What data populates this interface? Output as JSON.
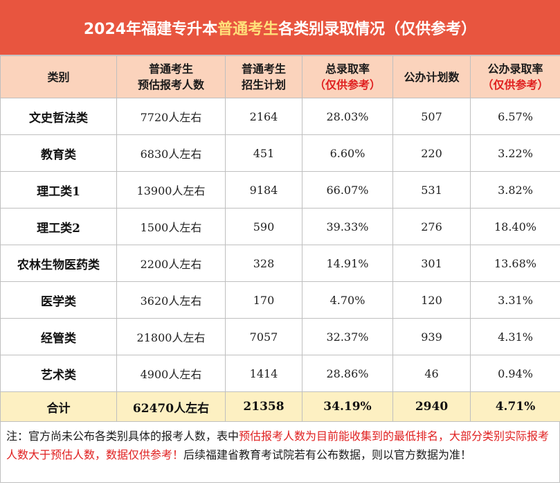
{
  "title": {
    "prefix": "2024年福建专升本",
    "highlight": "普通考生",
    "suffix": "各类别录取情况（仅供参考）"
  },
  "headers": [
    {
      "line1": "类别",
      "line2": ""
    },
    {
      "line1": "普通考生",
      "line2": "预估报考人数"
    },
    {
      "line1": "普通考生",
      "line2": "招生计划"
    },
    {
      "line1": "总录取率",
      "line2": "（仅供参考）"
    },
    {
      "line1": "公办计划数",
      "line2": ""
    },
    {
      "line1": "公办录取率",
      "line2": "（仅供参考）"
    }
  ],
  "rows": [
    {
      "category": "文史哲法类",
      "estimated": "7720人左右",
      "plan": "2164",
      "rate": "28.03%",
      "public_plan": "507",
      "public_rate": "6.57%"
    },
    {
      "category": "教育类",
      "estimated": "6830人左右",
      "plan": "451",
      "rate": "6.60%",
      "public_plan": "220",
      "public_rate": "3.22%"
    },
    {
      "category": "理工类1",
      "estimated": "13900人左右",
      "plan": "9184",
      "rate": "66.07%",
      "public_plan": "531",
      "public_rate": "3.82%"
    },
    {
      "category": "理工类2",
      "estimated": "1500人左右",
      "plan": "590",
      "rate": "39.33%",
      "public_plan": "276",
      "public_rate": "18.40%"
    },
    {
      "category": "农林生物医药类",
      "estimated": "2200人左右",
      "plan": "328",
      "rate": "14.91%",
      "public_plan": "301",
      "public_rate": "13.68%"
    },
    {
      "category": "医学类",
      "estimated": "3620人左右",
      "plan": "170",
      "rate": "4.70%",
      "public_plan": "120",
      "public_rate": "3.31%"
    },
    {
      "category": "经管类",
      "estimated": "21800人左右",
      "plan": "7057",
      "rate": "32.37%",
      "public_plan": "939",
      "public_rate": "4.31%"
    },
    {
      "category": "艺术类",
      "estimated": "4900人左右",
      "plan": "1414",
      "rate": "28.86%",
      "public_plan": "46",
      "public_rate": "0.94%"
    }
  ],
  "total": {
    "category": "合计",
    "estimated": "62470人左右",
    "plan": "21358",
    "rate": "34.19%",
    "public_plan": "2940",
    "public_rate": "4.71%"
  },
  "note": {
    "part1": "注：官方尚未公布各类别具体的报考人数，表中",
    "part2_red": "预估报考人数为目前能收集到的最低排名，大部分类别实际报考人数大于预估人数，数据仅供参考！",
    "part3": "后续福建省教育考试院若有公布数据，则以官方数据为准！"
  },
  "colors": {
    "title_bg": "#e8553f",
    "title_highlight": "#ffe07a",
    "header_bg": "#fbd3bc",
    "total_bg": "#fdf0c2",
    "red_text": "#e02020"
  }
}
